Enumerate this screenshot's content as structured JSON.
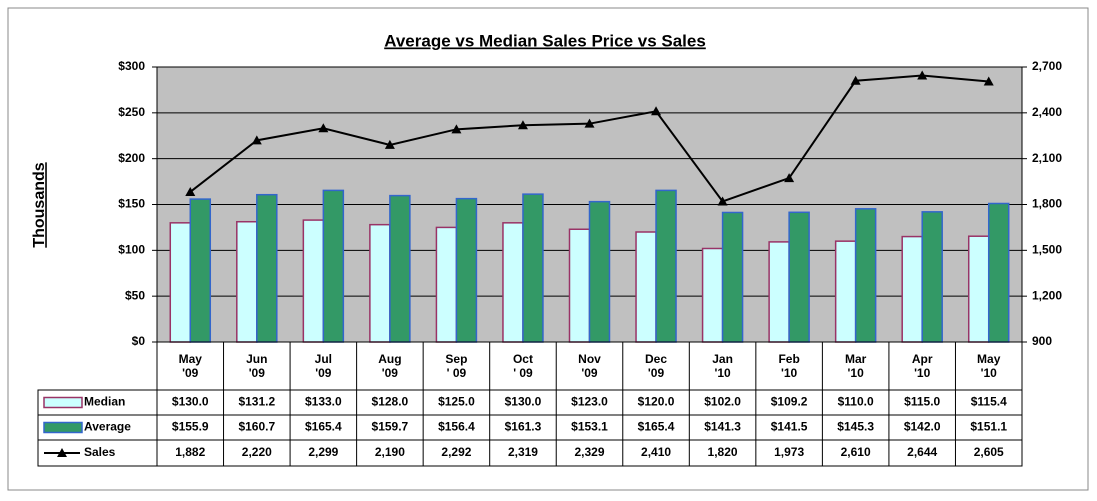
{
  "chart_data": {
    "type": "bar",
    "title": "Average vs Median Sales Price vs Sales",
    "y_label": "Thousands",
    "categories": [
      "May\n'09",
      "Jun\n'09",
      "Jul\n'09",
      "Aug\n'09",
      "Sep\n' 09",
      "Oct\n' 09",
      "Nov\n'09",
      "Dec\n'09",
      "Jan\n'10",
      "Feb\n'10",
      "Mar\n'10",
      "Apr\n'10",
      "May\n'10"
    ],
    "series": [
      {
        "name": "Median",
        "type": "bar",
        "color": "#ccffff",
        "edge": "#993366",
        "values": [
          130.0,
          131.2,
          133.0,
          128.0,
          125.0,
          130.0,
          123.0,
          120.0,
          102.0,
          109.2,
          110.0,
          115.0,
          115.4
        ],
        "value_labels": [
          "$130.0",
          "$131.2",
          "$133.0",
          "$128.0",
          "$125.0",
          "$130.0",
          "$123.0",
          "$120.0",
          "$102.0",
          "$109.2",
          "$110.0",
          "$115.0",
          "$115.4"
        ]
      },
      {
        "name": "Average",
        "type": "bar",
        "color": "#339966",
        "edge": "#3366cc",
        "values": [
          155.9,
          160.7,
          165.4,
          159.7,
          156.4,
          161.3,
          153.1,
          165.4,
          141.3,
          141.5,
          145.3,
          142.0,
          151.1
        ],
        "value_labels": [
          "$155.9",
          "$160.7",
          "$165.4",
          "$159.7",
          "$156.4",
          "$161.3",
          "$153.1",
          "$165.4",
          "$141.3",
          "$141.5",
          "$145.3",
          "$142.0",
          "$151.1"
        ]
      },
      {
        "name": "Sales",
        "type": "line",
        "axis": "y2",
        "color": "#000000",
        "values": [
          1882,
          2220,
          2299,
          2190,
          2292,
          2319,
          2329,
          2410,
          1820,
          1973,
          2610,
          2644,
          2605
        ],
        "value_labels": [
          "1,882",
          "2,220",
          "2,299",
          "2,190",
          "2,292",
          "2,319",
          "2,329",
          "2,410",
          "1,820",
          "1,973",
          "2,610",
          "2,644",
          "2,605"
        ]
      }
    ],
    "ylim": [
      0,
      300
    ],
    "yticks": [
      {
        "value": 0,
        "label": "$0"
      },
      {
        "value": 50,
        "label": "$50"
      },
      {
        "value": 100,
        "label": "$100"
      },
      {
        "value": 150,
        "label": "$150"
      },
      {
        "value": 200,
        "label": "$200"
      },
      {
        "value": 250,
        "label": "$250"
      },
      {
        "value": 300,
        "label": "$300"
      }
    ],
    "y2lim": [
      900,
      2700
    ],
    "y2ticks": [
      900,
      {
        "value": 1200,
        "label": "1,200"
      },
      {
        "value": 1500,
        "label": "1,500"
      },
      {
        "value": 1800,
        "label": "1,800"
      },
      {
        "value": 2100,
        "label": "2,100"
      },
      {
        "value": 2400,
        "label": "2,400"
      },
      {
        "value": 2700,
        "label": "2,700"
      }
    ],
    "grid": true,
    "plot_background": "#c0c0c0"
  }
}
